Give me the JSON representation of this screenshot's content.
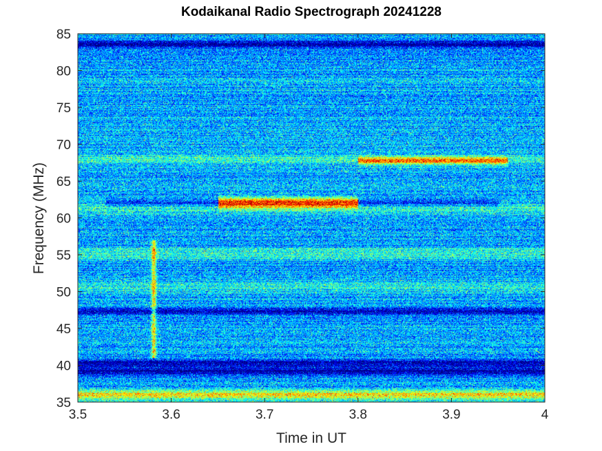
{
  "chart_data": {
    "type": "heatmap",
    "title": "Kodaikanal Radio Spectrograph  20241228",
    "xlabel": "Time in UT",
    "ylabel": "Frequency (MHz)",
    "xlim": [
      3.5,
      4.0
    ],
    "ylim": [
      35,
      85
    ],
    "x_ticks": [
      3.5,
      3.6,
      3.7,
      3.8,
      3.9,
      4.0
    ],
    "x_tick_labels": [
      "3.5",
      "3.6",
      "3.7",
      "3.8",
      "3.9",
      "4"
    ],
    "y_ticks": [
      35,
      40,
      45,
      50,
      55,
      60,
      65,
      70,
      75,
      80,
      85
    ],
    "y_tick_labels": [
      "35",
      "40",
      "45",
      "50",
      "55",
      "60",
      "65",
      "70",
      "75",
      "80",
      "85"
    ],
    "colormap": "jet",
    "grid": false,
    "features": {
      "dark_bands_mhz": [
        83.6,
        47.4,
        40.3,
        39.2
      ],
      "bright_band_mhz": [
        36.0,
        55.3,
        50.7,
        61.2,
        68.0
      ],
      "emission_62mhz": {
        "freq": 62.1,
        "x_start": 3.65,
        "x_end": 3.8
      },
      "emission_67mhz": {
        "freq": 67.8,
        "x_start": 3.8,
        "x_end": 3.96
      },
      "vertical_burst": {
        "x": 3.581,
        "f_low": 41,
        "f_high": 57
      }
    }
  }
}
